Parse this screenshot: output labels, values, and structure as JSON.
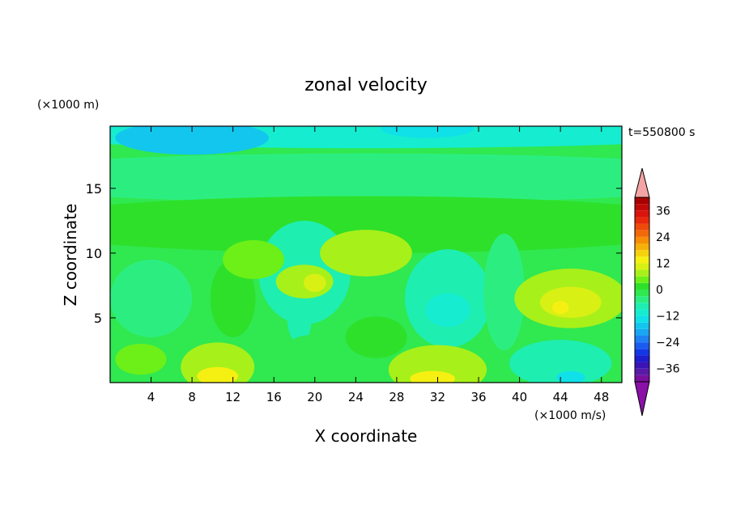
{
  "chart_data": {
    "type": "heatmap",
    "title": "zonal velocity",
    "xlabel": "X coordinate",
    "ylabel": "Z coordinate",
    "x_unit": "(×1000 m/s)",
    "y_unit": "(×1000 m)",
    "time_label": "t=550800 s",
    "xlim": [
      0,
      50
    ],
    "ylim": [
      0,
      19.8
    ],
    "x_ticks": [
      4,
      8,
      12,
      16,
      20,
      24,
      28,
      32,
      36,
      40,
      44,
      48
    ],
    "y_ticks": [
      5,
      10,
      15
    ],
    "colorbar": {
      "levels": [
        -42,
        -39,
        -36,
        -33,
        -30,
        -27,
        -24,
        -21,
        -18,
        -15,
        -12,
        -9,
        -6,
        -3,
        0,
        3,
        6,
        9,
        12,
        15,
        18,
        21,
        24,
        27,
        30,
        33,
        36,
        39,
        42
      ],
      "tick_values": [
        36,
        24,
        12,
        0,
        -12,
        -24,
        -36
      ],
      "tick_labels": [
        "36",
        "24",
        "12",
        "0",
        "−12",
        "−24",
        "−36"
      ],
      "colors": [
        "#7a0f9e",
        "#5a1aa8",
        "#3a14b4",
        "#1e1ecf",
        "#1437e6",
        "#1a5cf0",
        "#1e82f2",
        "#19a6f2",
        "#12c6ee",
        "#10e0e8",
        "#16ecd0",
        "#1eeeb0",
        "#2cee80",
        "#30e850",
        "#2ee02a",
        "#6cf018",
        "#a8f01a",
        "#d8f014",
        "#f6f012",
        "#f6d20e",
        "#f6b00a",
        "#f68e08",
        "#f26a08",
        "#ee4a0a",
        "#e8280c",
        "#d8140c",
        "#c00a0a",
        "#a80000"
      ],
      "over_color": "#f4a4a4",
      "under_color": "#8a10a8"
    },
    "blobs": [
      {
        "x": 25,
        "z": 19.5,
        "rx": 40,
        "rz": 1.4,
        "v": -10
      },
      {
        "x": 8,
        "z": 18.9,
        "rx": 7.5,
        "rz": 1.3,
        "v": -16
      },
      {
        "x": 31,
        "z": 19.6,
        "rx": 4.5,
        "rz": 0.7,
        "v": -14
      },
      {
        "x": 25,
        "z": 15.8,
        "rx": 40,
        "rz": 1.9,
        "v": -6
      },
      {
        "x": 25,
        "z": 12.2,
        "rx": 35,
        "rz": 2.2,
        "v": 0
      },
      {
        "x": 19,
        "z": 8.5,
        "rx": 4.5,
        "rz": 4.0,
        "v": -7
      },
      {
        "x": 33,
        "z": 6.5,
        "rx": 4.2,
        "rz": 3.8,
        "v": -9
      },
      {
        "x": 33,
        "z": 5.6,
        "rx": 2.2,
        "rz": 1.3,
        "v": -12
      },
      {
        "x": 4,
        "z": 6.5,
        "rx": 4.0,
        "rz": 3.0,
        "v": -5
      },
      {
        "x": 18.5,
        "z": 5.0,
        "rx": 1.2,
        "rz": 2.0,
        "v": -8
      },
      {
        "x": 38.5,
        "z": 7.0,
        "rx": 2.0,
        "rz": 4.5,
        "v": -5
      },
      {
        "x": 12,
        "z": 6.5,
        "rx": 2.2,
        "rz": 3.0,
        "v": 2
      },
      {
        "x": 25,
        "z": 10.0,
        "rx": 4.5,
        "rz": 1.8,
        "v": 6
      },
      {
        "x": 19,
        "z": 7.8,
        "rx": 2.8,
        "rz": 1.3,
        "v": 6
      },
      {
        "x": 20,
        "z": 7.7,
        "rx": 1.1,
        "rz": 0.7,
        "v": 10
      },
      {
        "x": 45,
        "z": 6.5,
        "rx": 5.5,
        "rz": 2.3,
        "v": 7
      },
      {
        "x": 45,
        "z": 6.2,
        "rx": 3.0,
        "rz": 1.2,
        "v": 10
      },
      {
        "x": 44,
        "z": 5.8,
        "rx": 0.8,
        "rz": 0.5,
        "v": 14
      },
      {
        "x": 10.5,
        "z": 1.2,
        "rx": 3.6,
        "rz": 1.9,
        "v": 8
      },
      {
        "x": 10.5,
        "z": 0.5,
        "rx": 2.0,
        "rz": 0.7,
        "v": 12
      },
      {
        "x": 32,
        "z": 1.0,
        "rx": 4.8,
        "rz": 1.9,
        "v": 8
      },
      {
        "x": 31.5,
        "z": 0.3,
        "rx": 2.2,
        "rz": 0.6,
        "v": 13
      },
      {
        "x": 44,
        "z": 1.5,
        "rx": 5.0,
        "rz": 1.8,
        "v": -7
      },
      {
        "x": 45,
        "z": 0.4,
        "rx": 1.4,
        "rz": 0.5,
        "v": -15
      },
      {
        "x": 3,
        "z": 1.8,
        "rx": 2.5,
        "rz": 1.2,
        "v": 3
      },
      {
        "x": 20,
        "z": 2.5,
        "rx": 3.0,
        "rz": 1.2,
        "v": -3
      },
      {
        "x": 26,
        "z": 3.5,
        "rx": 3.0,
        "rz": 1.6,
        "v": 2
      },
      {
        "x": 14,
        "z": 9.5,
        "rx": 3.0,
        "rz": 1.5,
        "v": 3
      }
    ]
  }
}
